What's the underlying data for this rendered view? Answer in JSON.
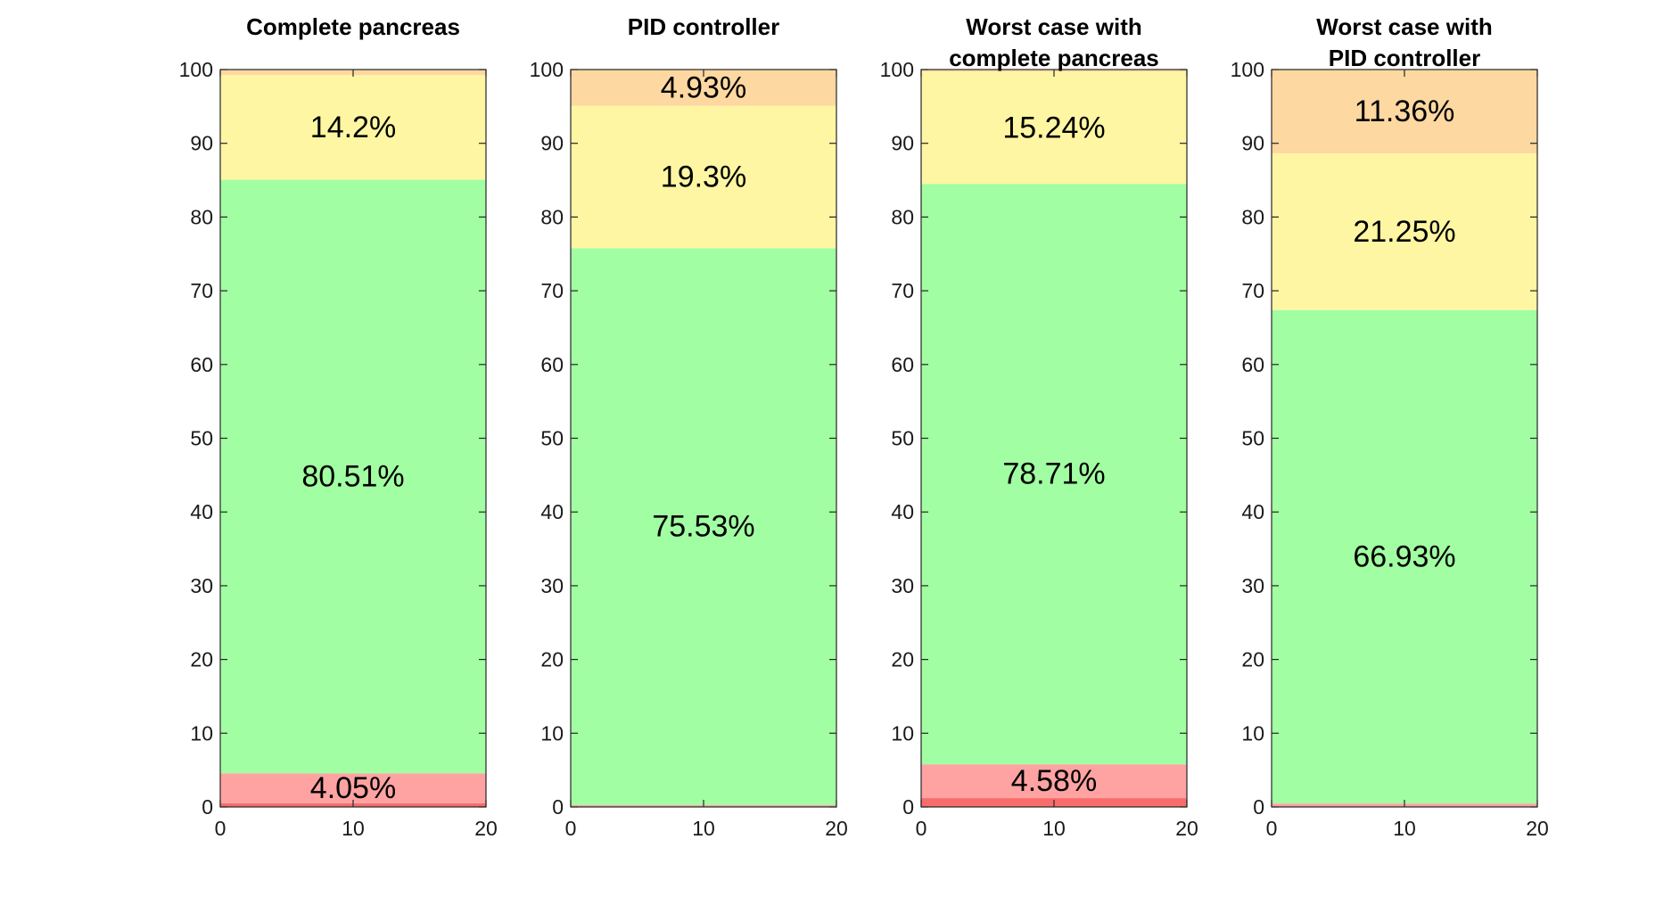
{
  "chart_data": [
    {
      "type": "bar",
      "stacked": true,
      "title": [
        "Complete pancreas"
      ],
      "xlim": [
        0,
        20
      ],
      "ylim": [
        0,
        100
      ],
      "xticks": [
        "0",
        "10",
        "20"
      ],
      "yticks": [
        "0",
        "10",
        "20",
        "30",
        "40",
        "50",
        "60",
        "70",
        "80",
        "90",
        "100"
      ],
      "segments": [
        {
          "value": 0.5,
          "color": "#f86c6c",
          "label": ""
        },
        {
          "value": 4.05,
          "color": "#fea2a2",
          "label": "4.05%"
        },
        {
          "value": 80.51,
          "color": "#a2fea2",
          "label": "80.51%"
        },
        {
          "value": 14.2,
          "color": "#fef6a2",
          "label": "14.2%"
        },
        {
          "value": 0.74,
          "color": "#fdd8a0",
          "label": ""
        }
      ]
    },
    {
      "type": "bar",
      "stacked": true,
      "title": [
        "PID controller"
      ],
      "xlim": [
        0,
        20
      ],
      "ylim": [
        0,
        100
      ],
      "xticks": [
        "0",
        "10",
        "20"
      ],
      "yticks": [
        "0",
        "10",
        "20",
        "30",
        "40",
        "50",
        "60",
        "70",
        "80",
        "90",
        "100"
      ],
      "segments": [
        {
          "value": 0.1,
          "color": "#f86c6c",
          "label": ""
        },
        {
          "value": 0.14,
          "color": "#fea2a2",
          "label": ""
        },
        {
          "value": 75.53,
          "color": "#a2fea2",
          "label": "75.53%"
        },
        {
          "value": 19.3,
          "color": "#fef6a2",
          "label": "19.3%"
        },
        {
          "value": 4.93,
          "color": "#fdd8a0",
          "label": "4.93%"
        }
      ]
    },
    {
      "type": "bar",
      "stacked": true,
      "title": [
        "Worst case with",
        "complete pancreas"
      ],
      "xlim": [
        0,
        20
      ],
      "ylim": [
        0,
        100
      ],
      "xticks": [
        "0",
        "10",
        "20"
      ],
      "yticks": [
        "0",
        "10",
        "20",
        "30",
        "40",
        "50",
        "60",
        "70",
        "80",
        "90",
        "100"
      ],
      "segments": [
        {
          "value": 1.2,
          "color": "#f86c6c",
          "label": ""
        },
        {
          "value": 4.58,
          "color": "#fea2a2",
          "label": "4.58%"
        },
        {
          "value": 78.71,
          "color": "#a2fea2",
          "label": "78.71%"
        },
        {
          "value": 15.24,
          "color": "#fef6a2",
          "label": "15.24%"
        },
        {
          "value": 0.27,
          "color": "#fdd8a0",
          "label": ""
        }
      ]
    },
    {
      "type": "bar",
      "stacked": true,
      "title": [
        "Worst case with",
        "PID controller"
      ],
      "xlim": [
        0,
        20
      ],
      "ylim": [
        0,
        100
      ],
      "xticks": [
        "0",
        "10",
        "20"
      ],
      "yticks": [
        "0",
        "10",
        "20",
        "30",
        "40",
        "50",
        "60",
        "70",
        "80",
        "90",
        "100"
      ],
      "segments": [
        {
          "value": 0.1,
          "color": "#f86c6c",
          "label": ""
        },
        {
          "value": 0.36,
          "color": "#fea2a2",
          "label": ""
        },
        {
          "value": 66.93,
          "color": "#a2fea2",
          "label": "66.93%"
        },
        {
          "value": 21.25,
          "color": "#fef6a2",
          "label": "21.25%"
        },
        {
          "value": 11.36,
          "color": "#fdd8a0",
          "label": "11.36%"
        }
      ]
    }
  ]
}
